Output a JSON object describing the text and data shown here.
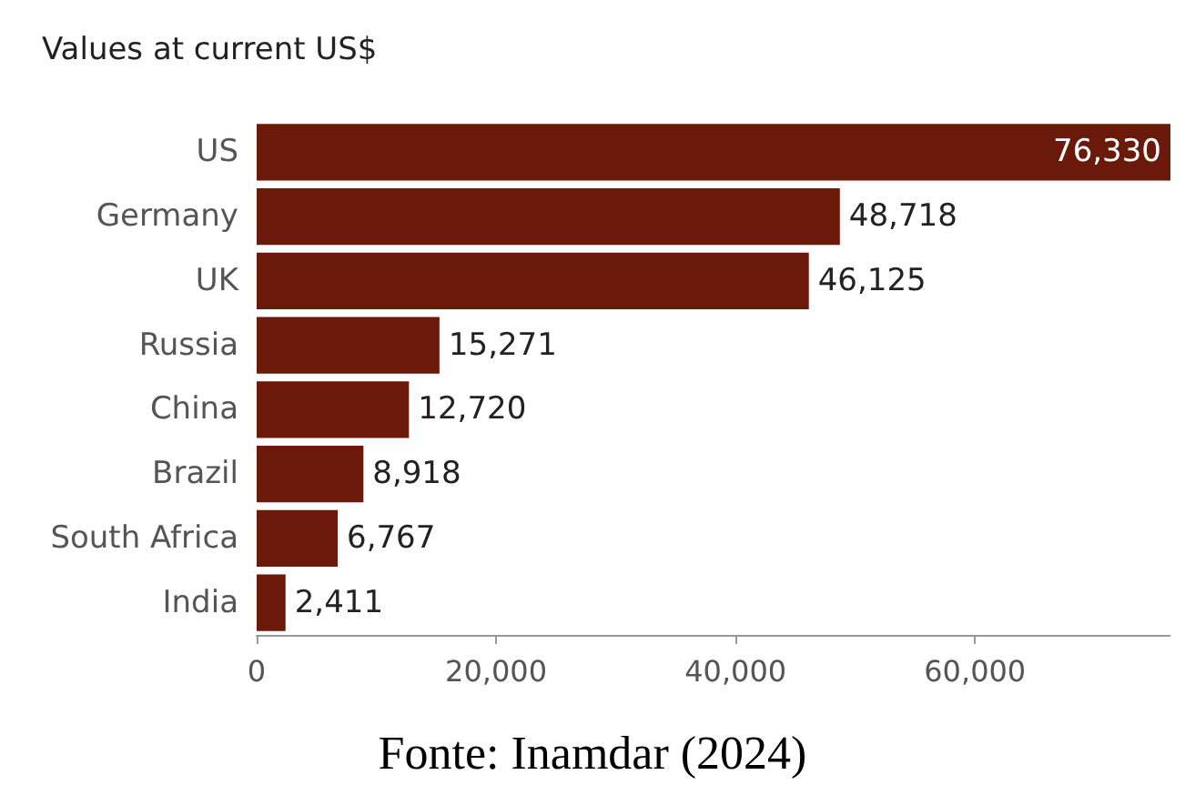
{
  "chart_data": {
    "type": "bar",
    "orientation": "horizontal",
    "title": "Values at current US$",
    "categories": [
      "US",
      "Germany",
      "UK",
      "Russia",
      "China",
      "Brazil",
      "South Africa",
      "India"
    ],
    "values": [
      76330,
      48718,
      46125,
      15271,
      12720,
      8918,
      6767,
      2411
    ],
    "value_labels": [
      "76,330",
      "48,718",
      "46,125",
      "15,271",
      "12,720",
      "8,918",
      "6,767",
      "2,411"
    ],
    "color": "#6b190b",
    "xlim": [
      0,
      76330
    ],
    "xticks": [
      0,
      {
        "value": 20000,
        "label": "20,000"
      },
      {
        "value": 40000,
        "label": "40,000"
      },
      {
        "value": 60000,
        "label": "60,000"
      }
    ],
    "grid": false,
    "annotations": [
      "Fonte: Inamdar (2024)"
    ]
  }
}
